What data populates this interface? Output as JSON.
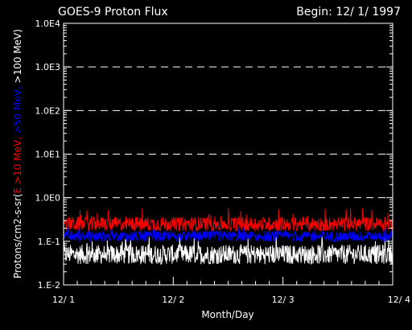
{
  "chart_data": {
    "type": "line",
    "title": "GOES-9 Proton Flux",
    "subtitle": "Begin: 12/ 1/ 1997",
    "xlabel": "Month/Day",
    "ylabel_parts": [
      {
        "text": "Protons/cm2-s-sr(",
        "color": "#ffffff"
      },
      {
        "text": "E >10 MeV,",
        "color": "#ff0000"
      },
      {
        "text": " >50 MeV,",
        "color": "#0000ff"
      },
      {
        "text": " >100 MeV",
        "color": "#ffffff"
      },
      {
        "text": ")",
        "color": "#ffffff"
      }
    ],
    "y_scale": "log",
    "ylim": [
      0.01,
      10000
    ],
    "y_ticks": [
      {
        "value": 0.01,
        "label": "1.E-2"
      },
      {
        "value": 0.1,
        "label": "1.E-1"
      },
      {
        "value": 1,
        "label": "1.0E0"
      },
      {
        "value": 10,
        "label": "1.0E1"
      },
      {
        "value": 100,
        "label": "1.0E2"
      },
      {
        "value": 1000,
        "label": "1.0E3"
      },
      {
        "value": 10000,
        "label": "1.0E4"
      }
    ],
    "gridlines_y": [
      1,
      10,
      100,
      1000
    ],
    "grid": "dashed horizontal",
    "xlim": [
      0,
      3
    ],
    "x_ticks": [
      {
        "value": 0,
        "label": "12/ 1"
      },
      {
        "value": 1,
        "label": "12/ 2"
      },
      {
        "value": 2,
        "label": "12/ 3"
      },
      {
        "value": 3,
        "label": "12/ 4"
      }
    ],
    "series": [
      {
        "name": "E >10 MeV",
        "color": "#ff0000",
        "typical": 0.25,
        "range": [
          0.15,
          0.6
        ]
      },
      {
        "name": ">50 MeV",
        "color": "#0000ff",
        "typical": 0.13,
        "range": [
          0.08,
          0.22
        ]
      },
      {
        "name": ">100 MeV",
        "color": "#ffffff",
        "typical": 0.05,
        "range": [
          0.02,
          0.13
        ]
      }
    ]
  }
}
